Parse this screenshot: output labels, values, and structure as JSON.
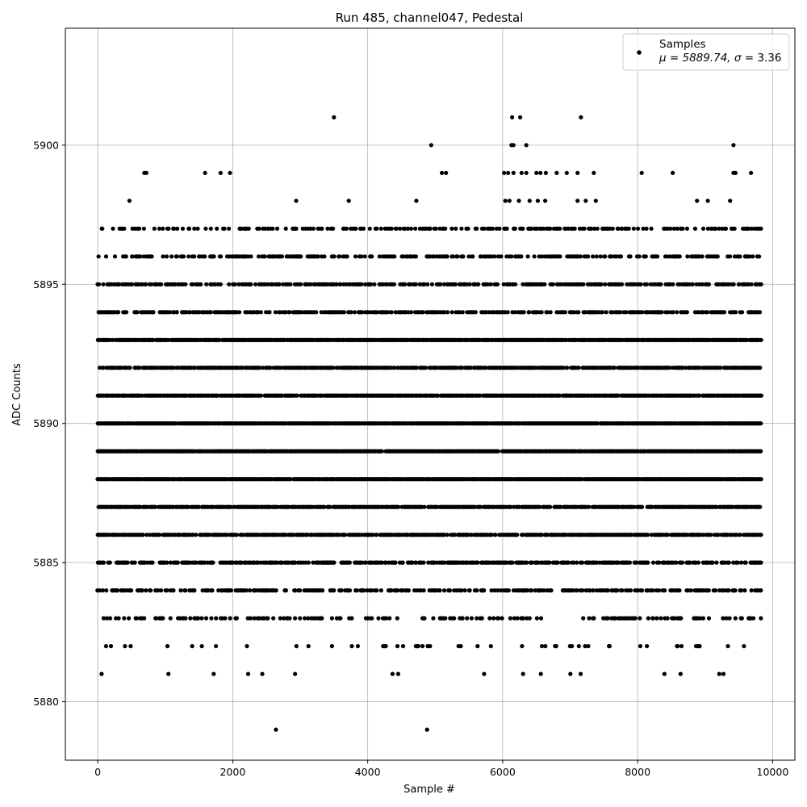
{
  "chart_data": {
    "type": "scatter",
    "title": "Run 485, channel047, Pedestal",
    "xlabel": "Sample #",
    "ylabel": "ADC Counts",
    "xlim": [
      -480,
      10330
    ],
    "ylim": [
      5877.9,
      5904.2
    ],
    "xticks": [
      0,
      2000,
      4000,
      6000,
      8000,
      10000
    ],
    "xtick_labels": [
      "0",
      "2000",
      "4000",
      "6000",
      "8000",
      "10000"
    ],
    "yticks": [
      5880,
      5885,
      5890,
      5895,
      5900
    ],
    "ytick_labels": [
      "5880",
      "5885",
      "5890",
      "5895",
      "5900"
    ],
    "grid": true,
    "legend": {
      "placement": "top-right",
      "label": "Samples",
      "stats_prefix": "μ = 5889.74, ",
      "stats_sigma": "σ",
      "stats_suffix": " = 3.36"
    },
    "series": [
      {
        "name": "Samples",
        "color": "#000000",
        "mean": 5889.74,
        "sigma": 3.36,
        "x_range": [
          0,
          9840
        ],
        "points": [
          [
            3500,
            5901
          ],
          [
            6140,
            5901
          ],
          [
            6260,
            5901
          ],
          [
            7160,
            5901
          ],
          [
            4940,
            5900
          ],
          [
            6130,
            5900
          ],
          [
            6160,
            5900
          ],
          [
            6350,
            5900
          ],
          [
            9420,
            5900
          ],
          [
            690,
            5899
          ],
          [
            720,
            5899
          ],
          [
            1590,
            5899
          ],
          [
            1820,
            5899
          ],
          [
            1960,
            5899
          ],
          [
            5100,
            5899
          ],
          [
            5160,
            5899
          ],
          [
            6020,
            5899
          ],
          [
            6080,
            5899
          ],
          [
            6160,
            5899
          ],
          [
            6280,
            5899
          ],
          [
            6350,
            5899
          ],
          [
            6500,
            5899
          ],
          [
            6560,
            5899
          ],
          [
            6640,
            5899
          ],
          [
            6800,
            5899
          ],
          [
            6950,
            5899
          ],
          [
            7110,
            5899
          ],
          [
            7350,
            5899
          ],
          [
            8060,
            5899
          ],
          [
            8520,
            5899
          ],
          [
            9420,
            5899
          ],
          [
            9450,
            5899
          ],
          [
            9680,
            5899
          ],
          [
            470,
            5898
          ],
          [
            2940,
            5898
          ],
          [
            3720,
            5898
          ],
          [
            4720,
            5898
          ],
          [
            6040,
            5898
          ],
          [
            6100,
            5898
          ],
          [
            6240,
            5898
          ],
          [
            6400,
            5898
          ],
          [
            6520,
            5898
          ],
          [
            6630,
            5898
          ],
          [
            7110,
            5898
          ],
          [
            7230,
            5898
          ],
          [
            7380,
            5898
          ],
          [
            8880,
            5898
          ],
          [
            9040,
            5898
          ],
          [
            9370,
            5898
          ],
          [
            2640,
            5879
          ],
          [
            4880,
            5879
          ]
        ],
        "dense_levels": [
          {
            "y": 5897,
            "density": 0.28
          },
          {
            "y": 5896,
            "density": 0.34
          },
          {
            "y": 5895,
            "density": 0.52
          },
          {
            "y": 5894,
            "density": 0.5
          },
          {
            "y": 5893,
            "density": 0.88
          },
          {
            "y": 5892,
            "density": 0.72
          },
          {
            "y": 5891,
            "density": 0.86
          },
          {
            "y": 5890,
            "density": 0.94
          },
          {
            "y": 5889,
            "density": 0.95
          },
          {
            "y": 5888,
            "density": 0.93
          },
          {
            "y": 5887,
            "density": 0.8
          },
          {
            "y": 5886,
            "density": 0.7
          },
          {
            "y": 5885,
            "density": 0.55
          },
          {
            "y": 5884,
            "density": 0.38
          },
          {
            "y": 5883,
            "density": 0.26
          },
          {
            "y": 5882,
            "density": 0.06
          },
          {
            "y": 5881,
            "density": 0.02
          }
        ]
      }
    ]
  }
}
